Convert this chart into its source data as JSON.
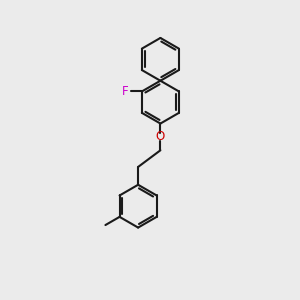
{
  "background_color": "#ebebeb",
  "bond_color": "#1a1a1a",
  "F_color": "#cc00cc",
  "O_color": "#cc0000",
  "line_width": 1.5,
  "figsize": [
    3.0,
    3.0
  ],
  "dpi": 100,
  "r": 0.72,
  "xlim": [
    0,
    10
  ],
  "ylim": [
    0,
    10
  ]
}
